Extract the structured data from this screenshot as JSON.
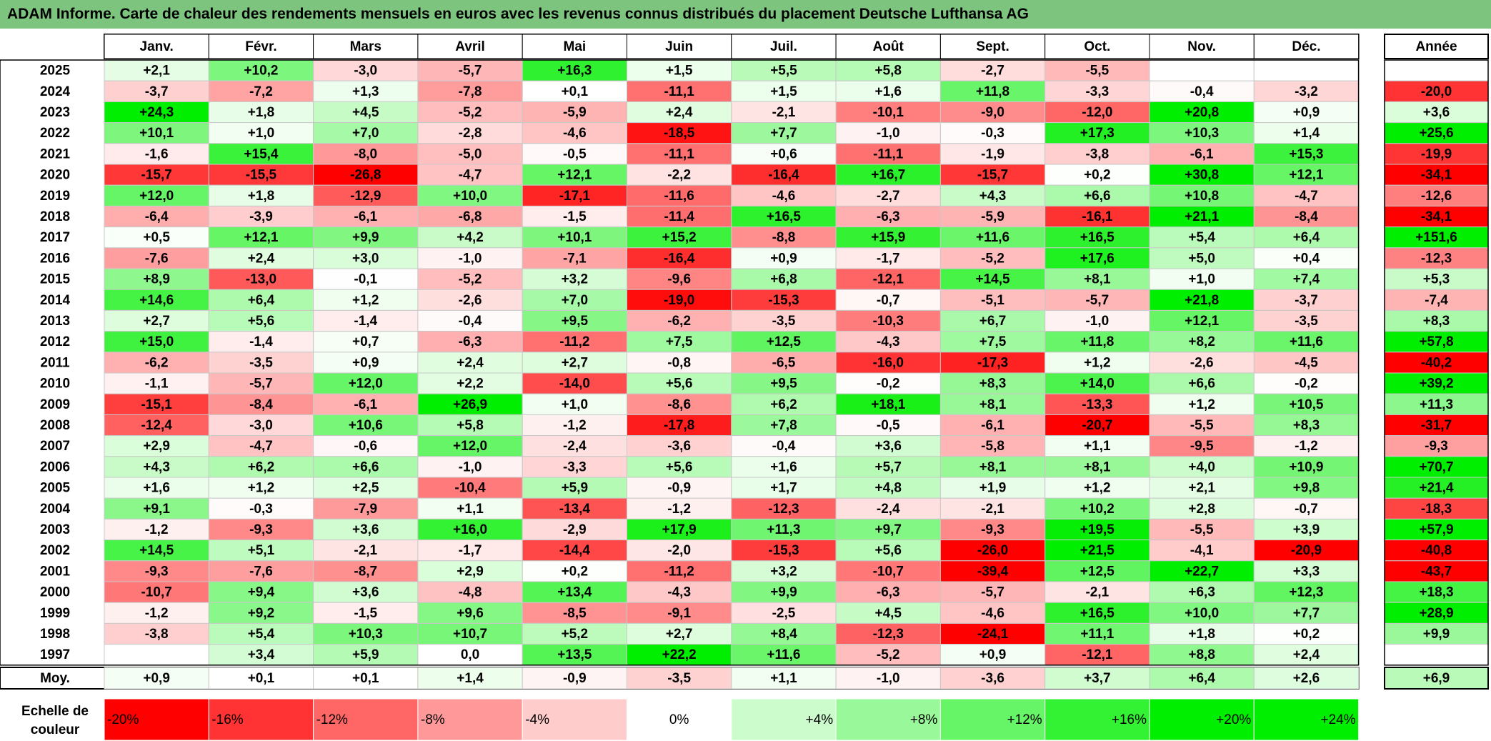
{
  "title": "ADAM Informe. Carte de chaleur des rendements mensuels en euros avec les revenus connus distribués du placement Deutsche Lufthansa AG",
  "chart_data": {
    "type": "heatmap",
    "title": "ADAM Informe. Carte de chaleur des rendements mensuels en euros avec les revenus connus distribués du placement Deutsche Lufthansa AG",
    "columns": [
      "Janv.",
      "Févr.",
      "Mars",
      "Avril",
      "Mai",
      "Juin",
      "Juil.",
      "Août",
      "Sept.",
      "Oct.",
      "Nov.",
      "Déc."
    ],
    "year_column_label": "Année",
    "rows": [
      {
        "year": "2025",
        "values": [
          "+2,1",
          "+10,2",
          "-3,0",
          "-5,7",
          "+16,3",
          "+1,5",
          "+5,5",
          "+5,8",
          "-2,7",
          "-5,5",
          "",
          ""
        ],
        "annual": ""
      },
      {
        "year": "2024",
        "values": [
          "-3,7",
          "-7,2",
          "+1,3",
          "-7,8",
          "+0,1",
          "-11,1",
          "+1,5",
          "+1,6",
          "+11,8",
          "-3,3",
          "-0,4",
          "-3,2"
        ],
        "annual": "-20,0"
      },
      {
        "year": "2023",
        "values": [
          "+24,3",
          "+1,8",
          "+4,5",
          "-5,2",
          "-5,9",
          "+2,4",
          "-2,1",
          "-10,1",
          "-9,0",
          "-12,0",
          "+20,8",
          "+0,9"
        ],
        "annual": "+3,6"
      },
      {
        "year": "2022",
        "values": [
          "+10,1",
          "+1,0",
          "+7,0",
          "-2,8",
          "-4,6",
          "-18,5",
          "+7,7",
          "-1,0",
          "-0,3",
          "+17,3",
          "+10,3",
          "+1,4"
        ],
        "annual": "+25,6"
      },
      {
        "year": "2021",
        "values": [
          "-1,6",
          "+15,4",
          "-8,0",
          "-5,0",
          "-0,5",
          "-11,1",
          "+0,6",
          "-11,1",
          "-1,9",
          "-3,8",
          "-6,1",
          "+15,3"
        ],
        "annual": "-19,9"
      },
      {
        "year": "2020",
        "values": [
          "-15,7",
          "-15,5",
          "-26,8",
          "-4,7",
          "+12,1",
          "-2,2",
          "-16,4",
          "+16,7",
          "-15,7",
          "+0,2",
          "+30,8",
          "+12,1"
        ],
        "annual": "-34,1"
      },
      {
        "year": "2019",
        "values": [
          "+12,0",
          "+1,8",
          "-12,9",
          "+10,0",
          "-17,1",
          "-11,6",
          "-4,6",
          "-2,7",
          "+4,3",
          "+6,6",
          "+10,8",
          "-4,7"
        ],
        "annual": "-12,6"
      },
      {
        "year": "2018",
        "values": [
          "-6,4",
          "-3,9",
          "-6,1",
          "-6,8",
          "-1,5",
          "-11,4",
          "+16,5",
          "-6,3",
          "-5,9",
          "-16,1",
          "+21,1",
          "-8,4"
        ],
        "annual": "-34,1"
      },
      {
        "year": "2017",
        "values": [
          "+0,5",
          "+12,1",
          "+9,9",
          "+4,2",
          "+10,1",
          "+15,2",
          "-8,8",
          "+15,9",
          "+11,6",
          "+16,5",
          "+5,4",
          "+6,4"
        ],
        "annual": "+151,6"
      },
      {
        "year": "2016",
        "values": [
          "-7,6",
          "+2,4",
          "+3,0",
          "-1,0",
          "-7,1",
          "-16,4",
          "+0,9",
          "-1,7",
          "-5,2",
          "+17,6",
          "+5,0",
          "+0,4"
        ],
        "annual": "-12,3"
      },
      {
        "year": "2015",
        "values": [
          "+8,9",
          "-13,0",
          "-0,1",
          "-5,2",
          "+3,2",
          "-9,6",
          "+6,8",
          "-12,1",
          "+14,5",
          "+8,1",
          "+1,0",
          "+7,4"
        ],
        "annual": "+5,3"
      },
      {
        "year": "2014",
        "values": [
          "+14,6",
          "+6,4",
          "+1,2",
          "-2,6",
          "+7,0",
          "-19,0",
          "-15,3",
          "-0,7",
          "-5,1",
          "-5,7",
          "+21,8",
          "-3,7"
        ],
        "annual": "-7,4"
      },
      {
        "year": "2013",
        "values": [
          "+2,7",
          "+5,6",
          "-1,4",
          "-0,4",
          "+9,5",
          "-6,2",
          "-3,5",
          "-10,3",
          "+6,7",
          "-1,0",
          "+12,1",
          "-3,5"
        ],
        "annual": "+8,3"
      },
      {
        "year": "2012",
        "values": [
          "+15,0",
          "-1,4",
          "+0,7",
          "-6,3",
          "-11,2",
          "+7,5",
          "+12,5",
          "-4,3",
          "+7,5",
          "+11,8",
          "+8,2",
          "+11,6"
        ],
        "annual": "+57,8"
      },
      {
        "year": "2011",
        "values": [
          "-6,2",
          "-3,5",
          "+0,9",
          "+2,4",
          "+2,7",
          "-0,8",
          "-6,5",
          "-16,0",
          "-17,3",
          "+1,2",
          "-2,6",
          "-4,5"
        ],
        "annual": "-40,2"
      },
      {
        "year": "2010",
        "values": [
          "-1,1",
          "-5,7",
          "+12,0",
          "+2,2",
          "-14,0",
          "+5,6",
          "+9,5",
          "-0,2",
          "+8,3",
          "+14,0",
          "+6,6",
          "-0,2"
        ],
        "annual": "+39,2"
      },
      {
        "year": "2009",
        "values": [
          "-15,1",
          "-8,4",
          "-6,1",
          "+26,9",
          "+1,0",
          "-8,6",
          "+6,2",
          "+18,1",
          "+8,1",
          "-13,3",
          "+1,2",
          "+10,5"
        ],
        "annual": "+11,3"
      },
      {
        "year": "2008",
        "values": [
          "-12,4",
          "-3,0",
          "+10,6",
          "+5,8",
          "-1,2",
          "-17,8",
          "+7,8",
          "-0,5",
          "-6,1",
          "-20,7",
          "-5,5",
          "+8,3"
        ],
        "annual": "-31,7"
      },
      {
        "year": "2007",
        "values": [
          "+2,9",
          "-4,7",
          "-0,6",
          "+12,0",
          "-2,4",
          "-3,6",
          "-0,4",
          "+3,6",
          "-5,8",
          "+1,1",
          "-9,5",
          "-1,2"
        ],
        "annual": "-9,3"
      },
      {
        "year": "2006",
        "values": [
          "+4,3",
          "+6,2",
          "+6,6",
          "-1,0",
          "-3,3",
          "+5,6",
          "+1,6",
          "+5,7",
          "+8,1",
          "+8,1",
          "+4,0",
          "+10,9"
        ],
        "annual": "+70,7"
      },
      {
        "year": "2005",
        "values": [
          "+1,6",
          "+1,2",
          "+2,5",
          "-10,4",
          "+5,9",
          "-0,9",
          "+1,7",
          "+4,8",
          "+1,9",
          "+1,2",
          "+2,1",
          "+9,8"
        ],
        "annual": "+21,4"
      },
      {
        "year": "2004",
        "values": [
          "+9,1",
          "-0,3",
          "-7,9",
          "+1,1",
          "-13,4",
          "-1,2",
          "-12,3",
          "-2,4",
          "-2,1",
          "+10,2",
          "+2,8",
          "-0,7"
        ],
        "annual": "-18,3"
      },
      {
        "year": "2003",
        "values": [
          "-1,2",
          "-9,3",
          "+3,6",
          "+16,0",
          "-2,9",
          "+17,9",
          "+11,3",
          "+9,7",
          "-9,3",
          "+19,5",
          "-5,5",
          "+3,9"
        ],
        "annual": "+57,9"
      },
      {
        "year": "2002",
        "values": [
          "+14,5",
          "+5,1",
          "-2,1",
          "-1,7",
          "-14,4",
          "-2,0",
          "-15,3",
          "+5,6",
          "-26,0",
          "+21,5",
          "-4,1",
          "-20,9"
        ],
        "annual": "-40,8"
      },
      {
        "year": "2001",
        "values": [
          "-9,3",
          "-7,6",
          "-8,7",
          "+2,9",
          "+0,2",
          "-11,2",
          "+3,2",
          "-10,7",
          "-39,4",
          "+12,5",
          "+22,7",
          "+3,3"
        ],
        "annual": "-43,7"
      },
      {
        "year": "2000",
        "values": [
          "-10,7",
          "+9,4",
          "+3,6",
          "-4,8",
          "+13,4",
          "-4,3",
          "+9,9",
          "-6,3",
          "-5,7",
          "-2,1",
          "+6,3",
          "+12,3"
        ],
        "annual": "+18,3"
      },
      {
        "year": "1999",
        "values": [
          "-1,2",
          "+9,2",
          "-1,5",
          "+9,6",
          "-8,5",
          "-9,1",
          "-2,5",
          "+4,5",
          "-4,6",
          "+16,5",
          "+10,0",
          "+7,7"
        ],
        "annual": "+28,9"
      },
      {
        "year": "1998",
        "values": [
          "-3,8",
          "+5,4",
          "+10,3",
          "+10,7",
          "+5,2",
          "+2,7",
          "+8,4",
          "-12,3",
          "-24,1",
          "+11,1",
          "+1,8",
          "+0,2"
        ],
        "annual": "+9,9"
      },
      {
        "year": "1997",
        "values": [
          "",
          "+3,4",
          "+5,9",
          "0,0",
          "+13,5",
          "+22,2",
          "+11,6",
          "-5,2",
          "+0,9",
          "-12,1",
          "+8,8",
          "+2,4"
        ],
        "annual": ""
      }
    ],
    "average": {
      "label": "Moy.",
      "values": [
        "+0,9",
        "+0,1",
        "+0,1",
        "+1,4",
        "-0,9",
        "-3,5",
        "+1,1",
        "-1,0",
        "-3,6",
        "+3,7",
        "+6,4",
        "+2,6"
      ],
      "annual": "+6,9"
    },
    "scale": {
      "label_line1": "Echelle de",
      "label_line2": "couleur",
      "steps": [
        "-20%",
        "-16%",
        "-12%",
        "-8%",
        "-4%",
        "0%",
        "+4%",
        "+8%",
        "+12%",
        "+16%",
        "+20%",
        "+24%"
      ],
      "step_values": [
        -20,
        -16,
        -12,
        -8,
        -4,
        0,
        4,
        8,
        12,
        16,
        20,
        24
      ]
    },
    "colors": {
      "negative": "#ff0000",
      "positive": "#00ee00",
      "neutral": "#ffffff",
      "title_bg": "#7dc57e"
    }
  }
}
